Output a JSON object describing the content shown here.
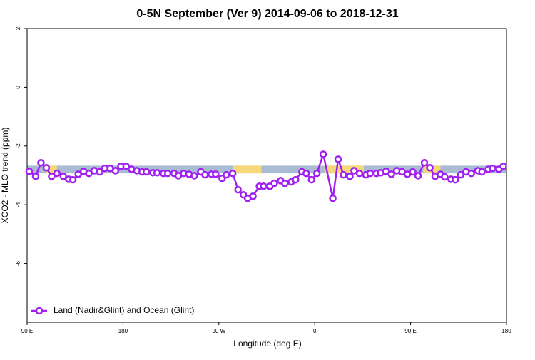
{
  "chart_data": {
    "type": "line",
    "title": "0-5N September (Ver 9)   2014-09-06 to 2018-12-31",
    "x_label": "Longitude (deg E)",
    "y_label": "XCO2 - MLO trend (ppm)",
    "xlim": [
      90,
      540
    ],
    "ylim": [
      -8,
      2
    ],
    "xticks": [
      {
        "value": 90,
        "label": "90 E"
      },
      {
        "value": 180,
        "label": "180"
      },
      {
        "value": 270,
        "label": "90 W"
      },
      {
        "value": 360,
        "label": "0"
      },
      {
        "value": 450,
        "label": "90 E"
      },
      {
        "value": 540,
        "label": "180"
      }
    ],
    "yticks": [
      -6,
      -4,
      -2,
      0,
      2
    ],
    "band_range": [
      -2.93,
      -2.67
    ],
    "band_color": "#a9bcd4",
    "land_color": "#f6d77a",
    "land_segments": [
      [
        108,
        118
      ],
      [
        283,
        310
      ],
      [
        369,
        406
      ],
      [
        462,
        478
      ]
    ],
    "legend_position": "bottom-left",
    "x": [
      92,
      98,
      103,
      108,
      113,
      118,
      124,
      129,
      133,
      138,
      143,
      148,
      153,
      158,
      163,
      168,
      173,
      178,
      183,
      188,
      193,
      198,
      202,
      208,
      212,
      218,
      222,
      228,
      232,
      237,
      242,
      247,
      253,
      257,
      263,
      267,
      273,
      277,
      283,
      288,
      293,
      297,
      302,
      308,
      312,
      318,
      322,
      328,
      332,
      338,
      342,
      348,
      352,
      357,
      362,
      368,
      377,
      382,
      387,
      393,
      397,
      402,
      408,
      412,
      418,
      422,
      427,
      432,
      437,
      442,
      447,
      452,
      457,
      463,
      468,
      473,
      478,
      482,
      488,
      492,
      497,
      502,
      507,
      513,
      517,
      523,
      527,
      533,
      537
    ],
    "series": [
      {
        "name": "Land (Nadir&Glint) and Ocean (Glint)",
        "color": "#a020f0",
        "values": [
          -2.86,
          -3.03,
          -2.57,
          -2.74,
          -3.03,
          -2.93,
          -3.03,
          -3.13,
          -3.15,
          -2.96,
          -2.86,
          -2.93,
          -2.84,
          -2.88,
          -2.76,
          -2.76,
          -2.84,
          -2.69,
          -2.69,
          -2.79,
          -2.84,
          -2.88,
          -2.88,
          -2.91,
          -2.91,
          -2.93,
          -2.93,
          -2.93,
          -3.01,
          -2.93,
          -2.96,
          -3.01,
          -2.88,
          -2.98,
          -2.96,
          -2.96,
          -3.1,
          -2.98,
          -2.93,
          -3.49,
          -3.66,
          -3.78,
          -3.71,
          -3.37,
          -3.37,
          -3.37,
          -3.27,
          -3.18,
          -3.27,
          -3.22,
          -3.15,
          -2.88,
          -2.93,
          -3.15,
          -2.93,
          -2.28,
          -3.78,
          -2.45,
          -2.98,
          -3.03,
          -2.84,
          -2.93,
          -2.98,
          -2.93,
          -2.93,
          -2.91,
          -2.86,
          -2.96,
          -2.84,
          -2.88,
          -2.96,
          -2.88,
          -3.01,
          -2.57,
          -2.74,
          -3.03,
          -2.96,
          -3.05,
          -3.13,
          -3.15,
          -2.98,
          -2.88,
          -2.93,
          -2.84,
          -2.88,
          -2.79,
          -2.76,
          -2.79,
          -2.69
        ]
      }
    ]
  }
}
